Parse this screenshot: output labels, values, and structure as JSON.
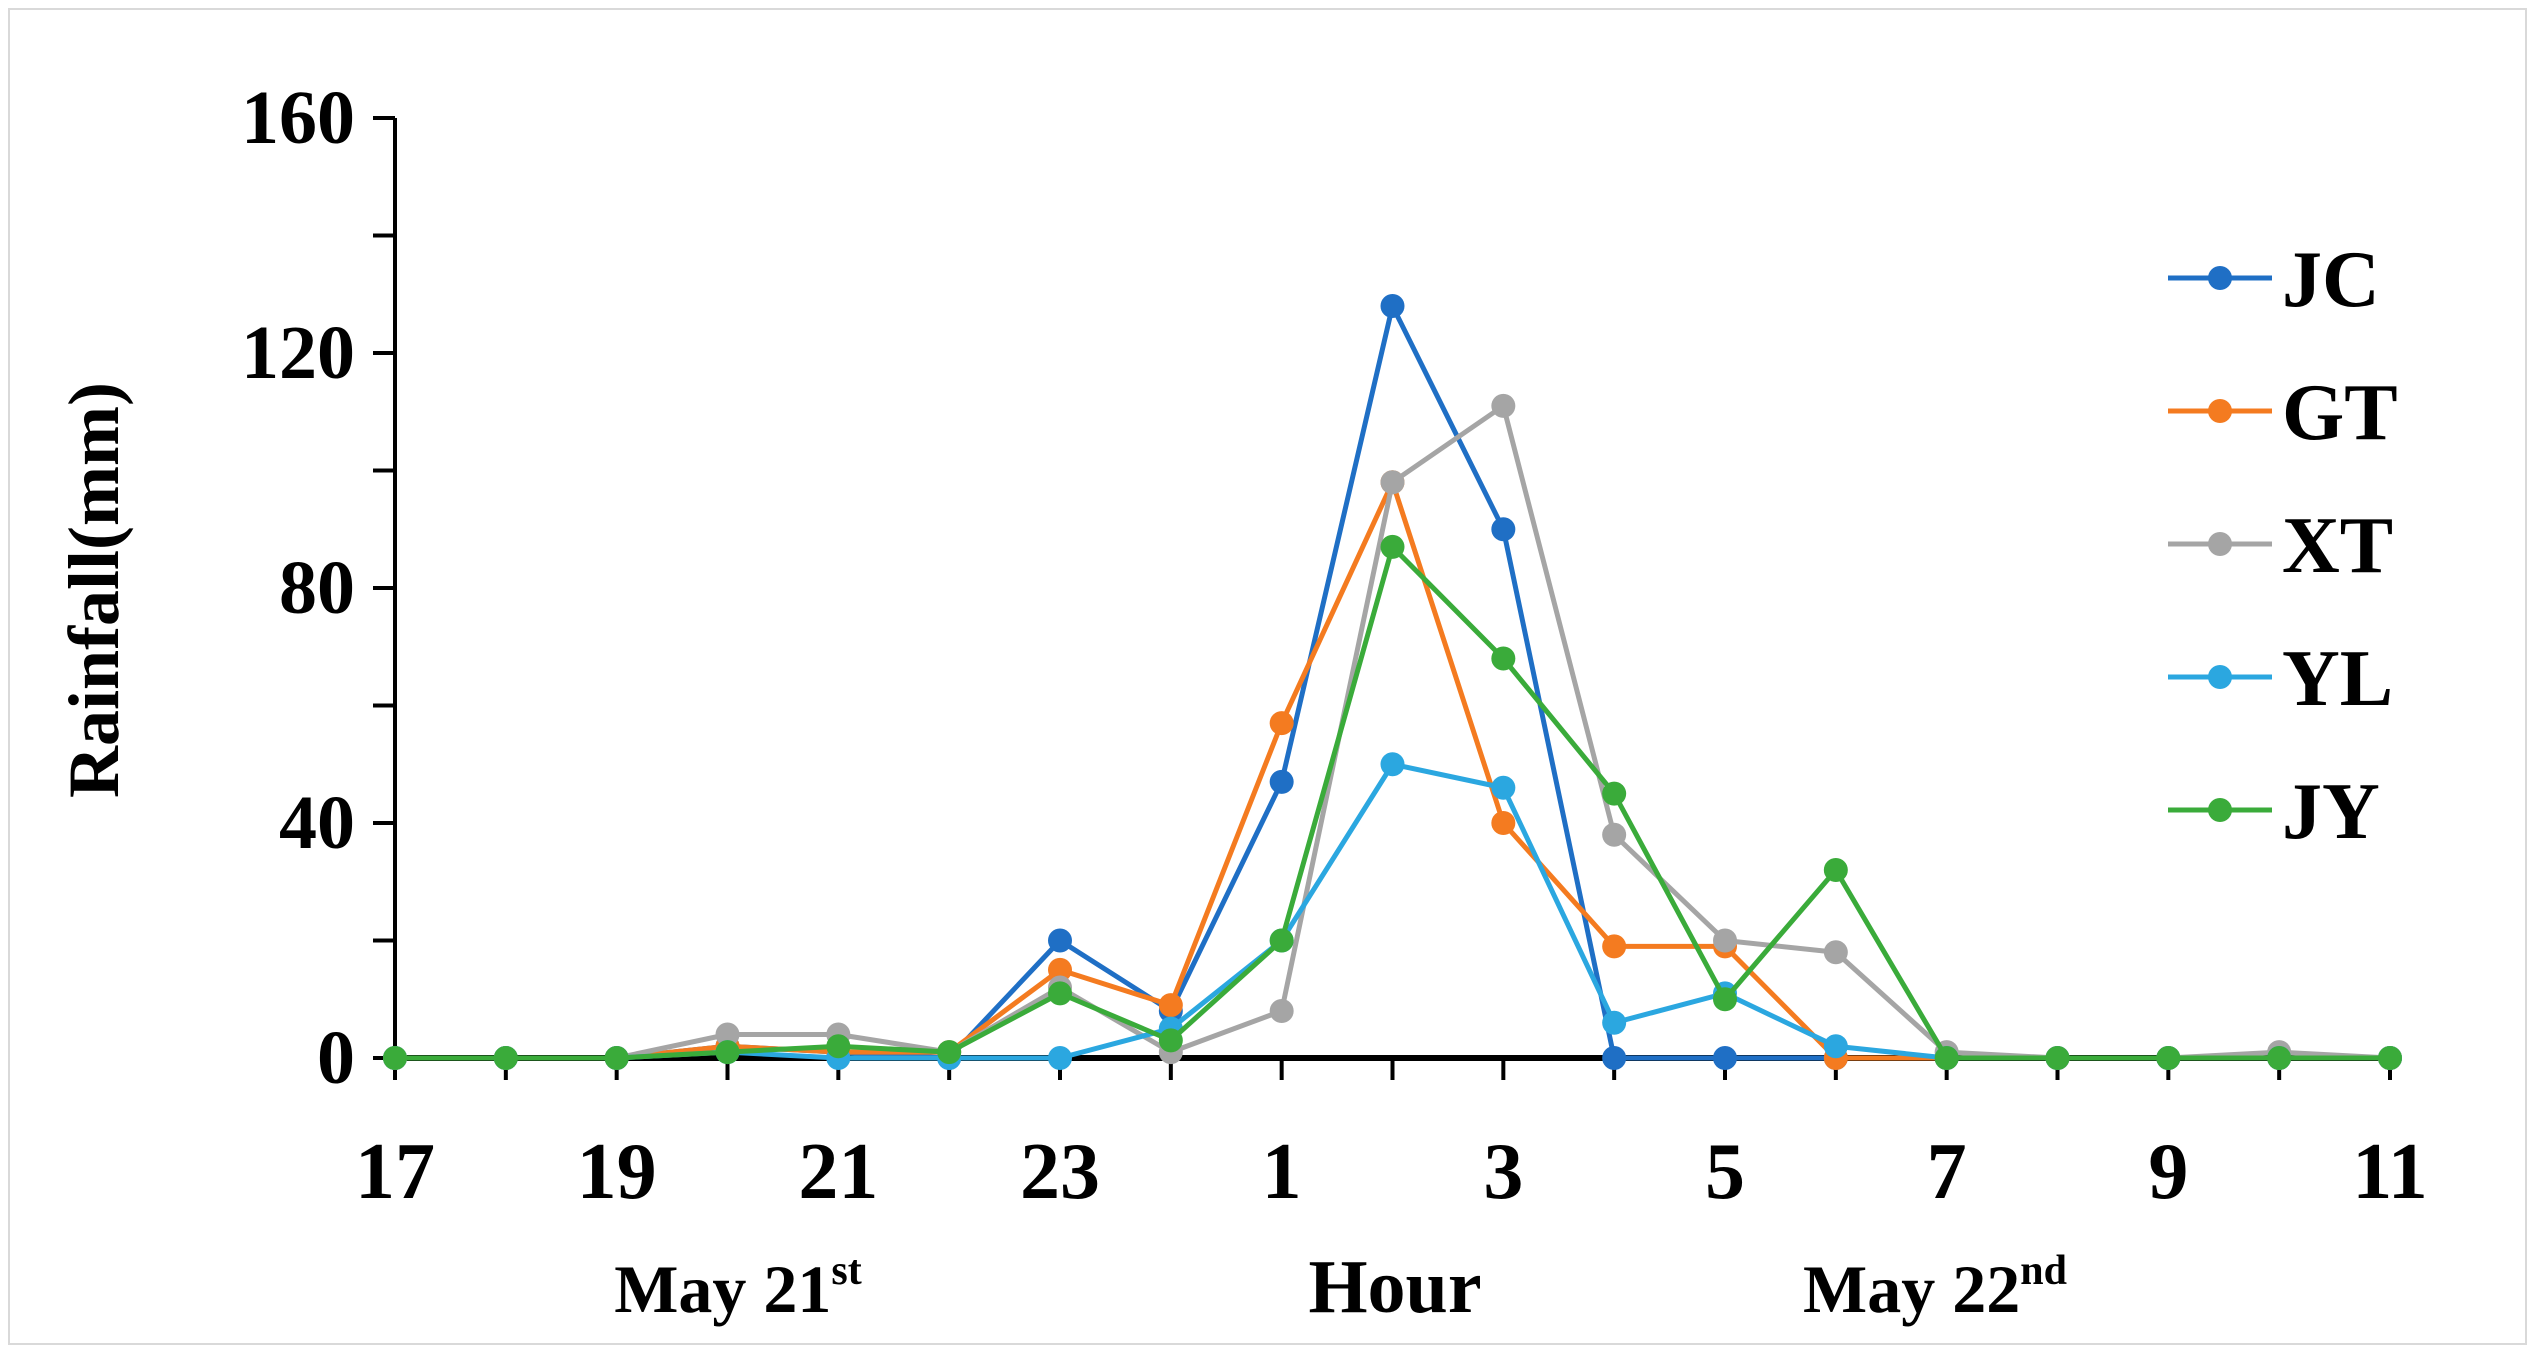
{
  "chart_data": {
    "type": "line",
    "ylabel": "Rainfall(mm)",
    "xlabel": "Hour",
    "date_labels": [
      {
        "text": "May 21",
        "sup": "st"
      },
      {
        "text": "May 22",
        "sup": "nd"
      }
    ],
    "ylim": [
      0,
      160
    ],
    "yticks": [
      0,
      40,
      80,
      120,
      160
    ],
    "categories": [
      "17",
      "18",
      "19",
      "20",
      "21",
      "22",
      "23",
      "24",
      "1",
      "2",
      "3",
      "4",
      "5",
      "6",
      "7",
      "8",
      "9",
      "10",
      "11"
    ],
    "x_tick_labels": [
      "17",
      "",
      "19",
      "",
      "21",
      "",
      "23",
      "",
      "1",
      "",
      "3",
      "",
      "5",
      "",
      "7",
      "",
      "9",
      "",
      "11"
    ],
    "grid": false,
    "legend_position": "right",
    "series": [
      {
        "name": "JC",
        "color": "#1f6fc5",
        "values": [
          0,
          0,
          0,
          2,
          1,
          0,
          20,
          8,
          47,
          128,
          90,
          0,
          0,
          0,
          0,
          0,
          0,
          0,
          0
        ]
      },
      {
        "name": "GT",
        "color": "#f47b20",
        "values": [
          0,
          0,
          0,
          2,
          1,
          1,
          15,
          9,
          57,
          98,
          40,
          19,
          19,
          0,
          0,
          0,
          0,
          0,
          0
        ]
      },
      {
        "name": "XT",
        "color": "#a5a5a5",
        "values": [
          0,
          0,
          0,
          4,
          4,
          1,
          12,
          1,
          8,
          98,
          111,
          38,
          20,
          18,
          1,
          0,
          0,
          1,
          0
        ]
      },
      {
        "name": "YL",
        "color": "#2ba7e0",
        "values": [
          0,
          0,
          0,
          1,
          0,
          0,
          0,
          5,
          20,
          50,
          46,
          6,
          11,
          2,
          0,
          0,
          0,
          0,
          0
        ]
      },
      {
        "name": "JY",
        "color": "#3aab3a",
        "values": [
          0,
          0,
          0,
          1,
          2,
          1,
          11,
          3,
          20,
          87,
          68,
          45,
          10,
          32,
          0,
          0,
          0,
          0,
          0
        ]
      }
    ]
  }
}
